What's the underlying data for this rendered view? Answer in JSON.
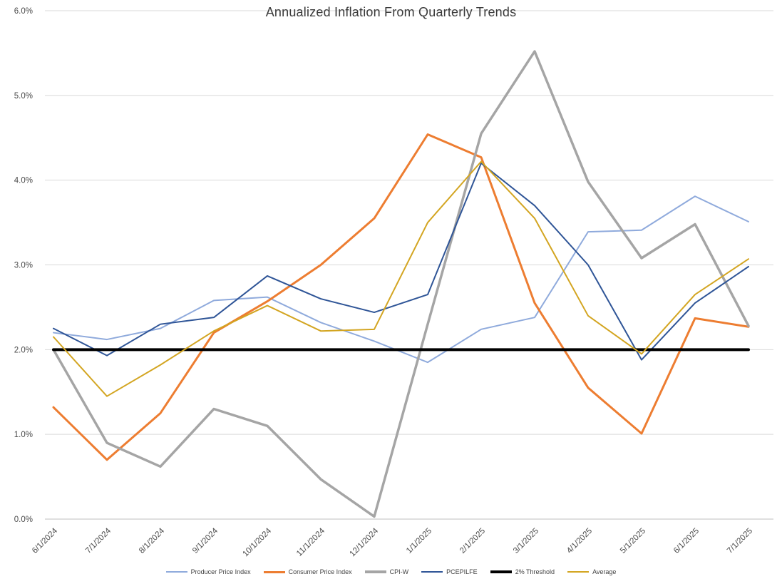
{
  "chart_data": {
    "type": "line",
    "title": "Annualized Inflation From Quarterly Trends",
    "xlabel": "",
    "ylabel": "",
    "grid": true,
    "legend_position": "bottom",
    "ylim": [
      0,
      6
    ],
    "y_ticks": [
      {
        "value": 0,
        "label": "0.0%"
      },
      {
        "value": 1,
        "label": "1.0%"
      },
      {
        "value": 2,
        "label": "2.0%"
      },
      {
        "value": 3,
        "label": "3.0%"
      },
      {
        "value": 4,
        "label": "4.0%"
      },
      {
        "value": 5,
        "label": "5.0%"
      },
      {
        "value": 6,
        "label": "6.0%"
      }
    ],
    "categories": [
      "6/1/2024",
      "7/1/2024",
      "8/1/2024",
      "9/1/2024",
      "10/1/2024",
      "11/1/2024",
      "12/1/2024",
      "1/1/2025",
      "2/1/2025",
      "3/1/2025",
      "4/1/2025",
      "5/1/2025",
      "6/1/2025",
      "7/1/2025"
    ],
    "series": [
      {
        "name": "Producer Price Index",
        "color": "#8FAADC",
        "width": 2,
        "values": [
          2.2,
          2.12,
          2.25,
          2.58,
          2.62,
          2.32,
          2.1,
          1.85,
          2.24,
          2.38,
          3.39,
          3.41,
          3.81,
          3.51
        ]
      },
      {
        "name": "Consumer Price Index",
        "color": "#ED7D31",
        "width": 3,
        "values": [
          1.32,
          0.7,
          1.25,
          2.2,
          2.57,
          3.0,
          3.55,
          4.54,
          4.27,
          2.55,
          1.55,
          1.01,
          2.37,
          2.27
        ]
      },
      {
        "name": "CPI-W",
        "color": "#A5A5A5",
        "width": 3.5,
        "values": [
          2.0,
          0.9,
          0.62,
          1.3,
          1.1,
          0.47,
          0.03,
          2.3,
          4.55,
          5.52,
          3.98,
          3.08,
          3.48,
          2.28
        ]
      },
      {
        "name": "PCEPILFE",
        "color": "#2F5597",
        "width": 2,
        "values": [
          2.25,
          1.93,
          2.3,
          2.38,
          2.87,
          2.6,
          2.44,
          2.65,
          4.2,
          3.7,
          3.0,
          1.88,
          2.55,
          2.98
        ]
      },
      {
        "name": "2% Threshold",
        "color": "#000000",
        "width": 4,
        "values": [
          2.0,
          2.0,
          2.0,
          2.0,
          2.0,
          2.0,
          2.0,
          2.0,
          2.0,
          2.0,
          2.0,
          2.0,
          2.0,
          2.0
        ]
      },
      {
        "name": "Average",
        "color": "#D3A521",
        "width": 2,
        "values": [
          2.15,
          1.45,
          1.82,
          2.22,
          2.52,
          2.22,
          2.24,
          3.5,
          4.22,
          3.55,
          2.4,
          1.95,
          2.65,
          3.07
        ]
      }
    ]
  },
  "styles": {
    "grid_color": "#D9D9D9",
    "axis_color": "#BFBFBF",
    "tick_text_color": "#4a4a4a",
    "title_text_color": "#3a3a3a",
    "background": "#FFFFFF"
  }
}
